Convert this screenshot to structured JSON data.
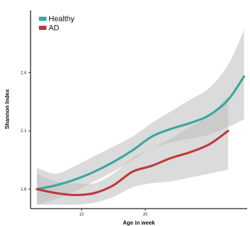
{
  "chart_data": {
    "type": "line",
    "title": "",
    "xlabel": "Age in week",
    "ylabel": "Shannon Index",
    "xlim": [
      2,
      36
    ],
    "ylim": [
      1.7,
      2.72
    ],
    "x_ticks": [
      10,
      20
    ],
    "y_ticks": [
      1.8,
      2.1,
      2.4
    ],
    "y_tick_labels": [
      "1.8",
      "2.1",
      "2.4"
    ],
    "grid": false,
    "legend": "top-left",
    "series": [
      {
        "name": "Healthy",
        "color": "#3aa7a0",
        "band_color": "#bdbdbd",
        "x": [
          3,
          6,
          9,
          12,
          15,
          18,
          21,
          24,
          27,
          30,
          33,
          35.5
        ],
        "y": [
          1.8,
          1.82,
          1.85,
          1.89,
          1.94,
          2.0,
          2.07,
          2.11,
          2.14,
          2.18,
          2.26,
          2.38
        ],
        "lower": [
          1.72,
          1.75,
          1.79,
          1.84,
          1.89,
          1.95,
          2.01,
          2.04,
          2.06,
          2.08,
          2.12,
          2.16
        ],
        "upper": [
          1.91,
          1.88,
          1.92,
          1.97,
          2.02,
          2.07,
          2.14,
          2.2,
          2.26,
          2.32,
          2.44,
          2.62
        ]
      },
      {
        "name": "AD",
        "color": "#c0393b",
        "band_color": "#bdbdbd",
        "x": [
          3,
          6,
          9,
          12,
          15,
          18,
          21,
          24,
          27,
          30,
          33
        ],
        "y": [
          1.8,
          1.78,
          1.77,
          1.78,
          1.82,
          1.89,
          1.92,
          1.96,
          1.99,
          2.03,
          2.1
        ],
        "lower": [
          1.72,
          1.72,
          1.72,
          1.73,
          1.76,
          1.81,
          1.83,
          1.84,
          1.86,
          1.88,
          1.9
        ],
        "upper": [
          1.88,
          1.84,
          1.83,
          1.83,
          1.88,
          1.96,
          2.01,
          2.06,
          2.12,
          2.18,
          2.28
        ]
      }
    ]
  }
}
